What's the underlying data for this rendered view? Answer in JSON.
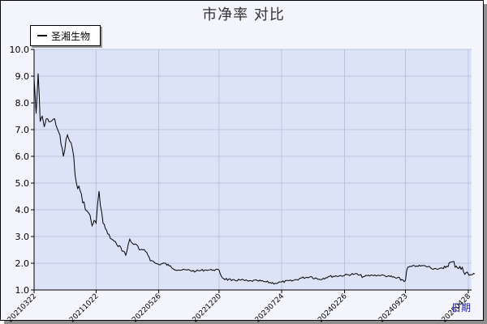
{
  "chart_data": {
    "type": "line",
    "title": "市净率  对比",
    "xlabel": "日期",
    "ylabel": "",
    "ylim": [
      1.0,
      10.0
    ],
    "yticks": [
      "1.0",
      "2.0",
      "3.0",
      "4.0",
      "5.0",
      "6.0",
      "7.0",
      "8.0",
      "9.0",
      "10.0"
    ],
    "xticks": [
      "20210322",
      "20211022",
      "20220526",
      "20221220",
      "20230724",
      "20240226",
      "20240923",
      "20250428"
    ],
    "grid": true,
    "legend_position": "top-left",
    "colors": {
      "plot_background": "#dde3f7",
      "page_background": "#f4f4fc",
      "line": "#000000",
      "grid": "#b8c4dc",
      "axis_label": "#1a1aa8"
    },
    "series": [
      {
        "name": "圣湘生物",
        "x": [
          "20210322",
          "20210329",
          "20210405",
          "20210412",
          "20210419",
          "20210426",
          "20210503",
          "20210517",
          "20210601",
          "20210615",
          "20210701",
          "20210715",
          "20210801",
          "20210815",
          "20210901",
          "20210915",
          "20210925",
          "20211001",
          "20211008",
          "20211015",
          "20211022",
          "20211101",
          "20211115",
          "20211201",
          "20211215",
          "20220101",
          "20220115",
          "20220201",
          "20220215",
          "20220301",
          "20220310",
          "20220320",
          "20220401",
          "20220415",
          "20220501",
          "20220515",
          "20220526",
          "20220615",
          "20220701",
          "20220801",
          "20220901",
          "20221001",
          "20221101",
          "20221201",
          "20221220",
          "20230101",
          "20230201",
          "20230301",
          "20230401",
          "20230501",
          "20230601",
          "20230701",
          "20230724",
          "20230901",
          "20231001",
          "20231101",
          "20231201",
          "20240101",
          "20240226",
          "20240401",
          "20240501",
          "20240601",
          "20240701",
          "20240801",
          "20240923",
          "20241001",
          "20241101",
          "20241201",
          "20250101",
          "20250201",
          "20250301",
          "20250428",
          "20250501",
          "20250520"
        ],
        "values": [
          8.9,
          7.6,
          9.1,
          7.3,
          7.5,
          7.1,
          7.4,
          7.3,
          7.4,
          6.9,
          6.0,
          6.8,
          6.3,
          5.0,
          4.6,
          4.0,
          3.9,
          3.8,
          3.4,
          3.6,
          3.5,
          4.7,
          3.5,
          3.1,
          2.9,
          2.7,
          2.6,
          2.3,
          2.9,
          2.7,
          2.7,
          2.5,
          2.5,
          2.4,
          2.1,
          2.0,
          1.95,
          2.0,
          1.9,
          1.75,
          1.75,
          1.7,
          1.75,
          1.75,
          1.75,
          1.45,
          1.35,
          1.38,
          1.33,
          1.35,
          1.3,
          1.25,
          1.3,
          1.35,
          1.45,
          1.5,
          1.4,
          1.5,
          1.55,
          1.6,
          1.5,
          1.55,
          1.55,
          1.5,
          1.35,
          1.85,
          1.9,
          1.9,
          1.8,
          1.8,
          2.05,
          1.6,
          1.55,
          1.6
        ]
      }
    ]
  }
}
